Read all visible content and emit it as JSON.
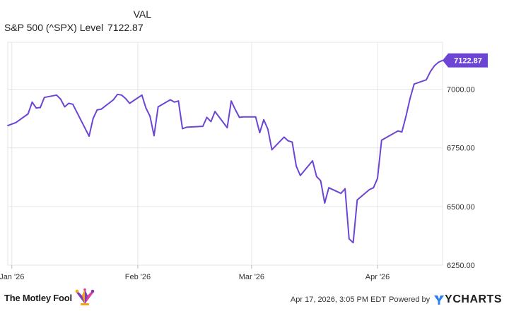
{
  "legend": {
    "header": "VAL",
    "series_label": "S&P 500 (^SPX) Level",
    "series_value": "7122.87"
  },
  "footer": {
    "brand": "The Motley Fool",
    "timestamp": "Apr 17, 2026, 3:05 PM EDT",
    "powered_by": "Powered by",
    "provider": "YCHARTS"
  },
  "colors": {
    "line": "#6c45d4",
    "grid": "#e6e6e6",
    "axis_text": "#333333",
    "accent_orange": "#f2a31b",
    "ycharts_blue": "#2f7ff0"
  },
  "chart_data": {
    "type": "line",
    "title": "",
    "xlabel": "",
    "ylabel": "",
    "ylim": [
      6250,
      7200
    ],
    "y_ticks": [
      6250,
      6500,
      6750,
      7000
    ],
    "y_tick_labels": [
      "6250.00",
      "6500.00",
      "6750.00",
      "7000.00"
    ],
    "x_ticks": [
      "2026-01-01",
      "2026-02-01",
      "2026-03-01",
      "2026-04-01"
    ],
    "x_tick_labels": [
      "Jan '26",
      "Feb '26",
      "Mar '26",
      "Apr '26"
    ],
    "x_range": [
      "2025-12-31",
      "2026-04-17"
    ],
    "grid": true,
    "end_label": "7122.87",
    "series": [
      {
        "name": "S&P 500 (^SPX) Level",
        "x": [
          "2025-12-31",
          "2026-01-02",
          "2026-01-05",
          "2026-01-06",
          "2026-01-07",
          "2026-01-08",
          "2026-01-09",
          "2026-01-12",
          "2026-01-13",
          "2026-01-14",
          "2026-01-15",
          "2026-01-16",
          "2026-01-20",
          "2026-01-21",
          "2026-01-22",
          "2026-01-23",
          "2026-01-26",
          "2026-01-27",
          "2026-01-28",
          "2026-01-29",
          "2026-01-30",
          "2026-02-02",
          "2026-02-03",
          "2026-02-04",
          "2026-02-05",
          "2026-02-06",
          "2026-02-09",
          "2026-02-10",
          "2026-02-11",
          "2026-02-12",
          "2026-02-13",
          "2026-02-17",
          "2026-02-18",
          "2026-02-19",
          "2026-02-20",
          "2026-02-23",
          "2026-02-24",
          "2026-02-25",
          "2026-02-26",
          "2026-02-27",
          "2026-03-02",
          "2026-03-03",
          "2026-03-04",
          "2026-03-05",
          "2026-03-06",
          "2026-03-09",
          "2026-03-10",
          "2026-03-11",
          "2026-03-12",
          "2026-03-13",
          "2026-03-16",
          "2026-03-17",
          "2026-03-18",
          "2026-03-19",
          "2026-03-20",
          "2026-03-23",
          "2026-03-24",
          "2026-03-25",
          "2026-03-26",
          "2026-03-27",
          "2026-03-30",
          "2026-03-31",
          "2026-04-01",
          "2026-04-02",
          "2026-04-06",
          "2026-04-07",
          "2026-04-08",
          "2026-04-09",
          "2026-04-10",
          "2026-04-13",
          "2026-04-14",
          "2026-04-15",
          "2026-04-16",
          "2026-04-17"
        ],
        "values": [
          6845,
          6858,
          6895,
          6945,
          6920,
          6922,
          6965,
          6975,
          6958,
          6925,
          6940,
          6936,
          6800,
          6875,
          6912,
          6915,
          6955,
          6978,
          6975,
          6960,
          6940,
          6975,
          6920,
          6885,
          6802,
          6925,
          6955,
          6945,
          6950,
          6832,
          6838,
          6842,
          6880,
          6862,
          6905,
          6836,
          6950,
          6913,
          6880,
          6882,
          6882,
          6815,
          6870,
          6830,
          6742,
          6796,
          6780,
          6775,
          6672,
          6632,
          6695,
          6628,
          6610,
          6515,
          6580,
          6556,
          6576,
          6362,
          6346,
          6528,
          6572,
          6580,
          6620,
          6783,
          6822,
          6818,
          6885,
          6960,
          7022,
          7040,
          7075,
          7100,
          7115,
          7122.87
        ]
      }
    ]
  }
}
